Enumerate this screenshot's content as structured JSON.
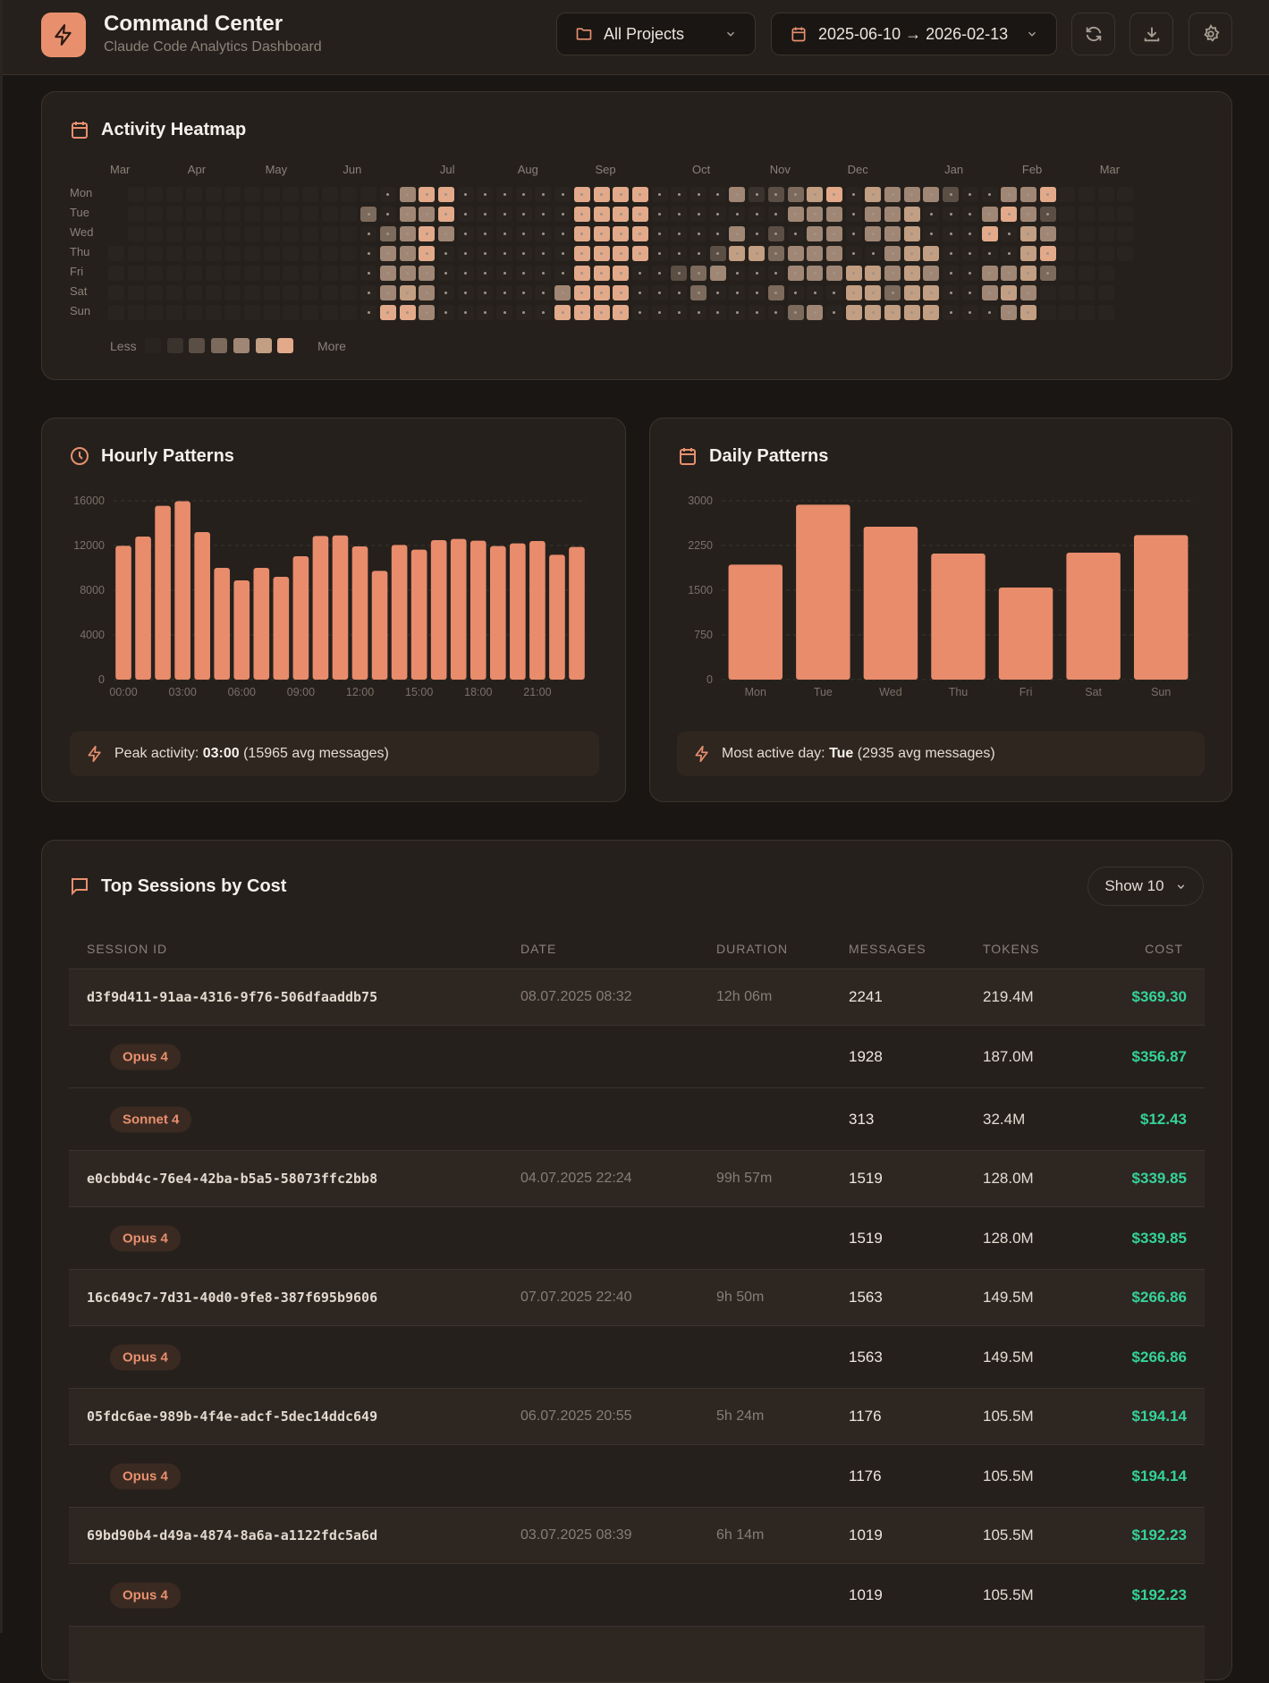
{
  "header": {
    "title": "Command Center",
    "subtitle": "Claude Code Analytics Dashboard",
    "project_filter": "All Projects",
    "date_range": "2025-06-10 → 2026-02-13"
  },
  "colors": {
    "accent": "#e8906e",
    "cost": "#34d399",
    "heat_levels": [
      "#2a2420",
      "#2a2420",
      "#3a322c",
      "#5a4e45",
      "#7c6a5c",
      "#a08674",
      "#c29e82",
      "#e2aa8a"
    ]
  },
  "heatmap": {
    "title": "Activity Heatmap",
    "months": [
      "Mar",
      "Apr",
      "May",
      "Jun",
      "Jul",
      "Aug",
      "Sep",
      "Oct",
      "Nov",
      "Dec",
      "Jan",
      "Feb",
      "Mar"
    ],
    "days": [
      "Mon",
      "Tue",
      "Wed",
      "Thu",
      "Fri",
      "Sat",
      "Sun"
    ],
    "levels": [
      "-0000000000000157711111177771111523467165553115570000",
      "-0000000000004155711111177771111111555155611157530000",
      "-0000000000001457511111177771111513155155611171650000",
      "00000000000001557111111177771113664555115661111670000",
      "0000000000000155511111117771134511155566565115564000-",
      "0000000000000156511111157771114111411166466115650000-",
      "0000000000000177511111177771111111145166666111560000-"
    ],
    "legend_less": "Less",
    "legend_more": "More"
  },
  "chart_data": [
    {
      "type": "bar",
      "title": "Hourly Patterns",
      "categories": [
        "00:00",
        "01:00",
        "02:00",
        "03:00",
        "04:00",
        "05:00",
        "06:00",
        "07:00",
        "08:00",
        "09:00",
        "10:00",
        "11:00",
        "12:00",
        "13:00",
        "14:00",
        "15:00",
        "16:00",
        "17:00",
        "18:00",
        "19:00",
        "20:00",
        "21:00",
        "22:00",
        "23:00"
      ],
      "tick_labels": [
        "00:00",
        "03:00",
        "06:00",
        "09:00",
        "12:00",
        "15:00",
        "18:00",
        "21:00"
      ],
      "values": [
        11970,
        12800,
        15550,
        15965,
        13200,
        10000,
        8880,
        10000,
        9200,
        11040,
        12850,
        12900,
        11920,
        9730,
        12050,
        11630,
        12480,
        12590,
        12430,
        11950,
        12190,
        12400,
        11170,
        11870
      ],
      "ylim": [
        0,
        16000
      ],
      "yticks": [
        "0",
        "4000",
        "8000",
        "12000",
        "16000"
      ],
      "grid": true,
      "footer": {
        "label": "Peak activity:",
        "value": "03:00",
        "detail": "(15965 avg messages)"
      }
    },
    {
      "type": "bar",
      "title": "Daily Patterns",
      "categories": [
        "Mon",
        "Tue",
        "Wed",
        "Thu",
        "Fri",
        "Sat",
        "Sun"
      ],
      "tick_labels": [
        "Mon",
        "Tue",
        "Wed",
        "Thu",
        "Fri",
        "Sat",
        "Sun"
      ],
      "values": [
        1930,
        2935,
        2565,
        2115,
        1545,
        2130,
        2425
      ],
      "ylim": [
        0,
        3000
      ],
      "yticks": [
        "0",
        "750",
        "1500",
        "2250",
        "3000"
      ],
      "grid": true,
      "footer": {
        "label": "Most active day:",
        "value": "Tue",
        "detail": "(2935 avg messages)"
      }
    }
  ],
  "sessions": {
    "title": "Top Sessions by Cost",
    "show_label": "Show 10",
    "columns": [
      "SESSION ID",
      "DATE",
      "DURATION",
      "MESSAGES",
      "TOKENS",
      "COST"
    ],
    "rows": [
      {
        "id": "d3f9d411-91aa-4316-9f76-506dfaaddb75",
        "date": "08.07.2025 08:32",
        "duration": "12h 06m",
        "messages": "2241",
        "tokens": "219.4M",
        "cost": "$369.30",
        "models": [
          {
            "name": "Opus 4",
            "messages": "1928",
            "tokens": "187.0M",
            "cost": "$356.87"
          },
          {
            "name": "Sonnet 4",
            "messages": "313",
            "tokens": "32.4M",
            "cost": "$12.43"
          }
        ]
      },
      {
        "id": "e0cbbd4c-76e4-42ba-b5a5-58073ffc2bb8",
        "date": "04.07.2025 22:24",
        "duration": "99h 57m",
        "messages": "1519",
        "tokens": "128.0M",
        "cost": "$339.85",
        "models": [
          {
            "name": "Opus 4",
            "messages": "1519",
            "tokens": "128.0M",
            "cost": "$339.85"
          }
        ]
      },
      {
        "id": "16c649c7-7d31-40d0-9fe8-387f695b9606",
        "date": "07.07.2025 22:40",
        "duration": "9h 50m",
        "messages": "1563",
        "tokens": "149.5M",
        "cost": "$266.86",
        "models": [
          {
            "name": "Opus 4",
            "messages": "1563",
            "tokens": "149.5M",
            "cost": "$266.86"
          }
        ]
      },
      {
        "id": "05fdc6ae-989b-4f4e-adcf-5dec14ddc649",
        "date": "06.07.2025 20:55",
        "duration": "5h 24m",
        "messages": "1176",
        "tokens": "105.5M",
        "cost": "$194.14",
        "models": [
          {
            "name": "Opus 4",
            "messages": "1176",
            "tokens": "105.5M",
            "cost": "$194.14"
          }
        ]
      },
      {
        "id": "69bd90b4-d49a-4874-8a6a-a1122fdc5a6d",
        "date": "03.07.2025 08:39",
        "duration": "6h 14m",
        "messages": "1019",
        "tokens": "105.5M",
        "cost": "$192.23",
        "models": [
          {
            "name": "Opus 4",
            "messages": "1019",
            "tokens": "105.5M",
            "cost": "$192.23"
          }
        ]
      }
    ]
  }
}
